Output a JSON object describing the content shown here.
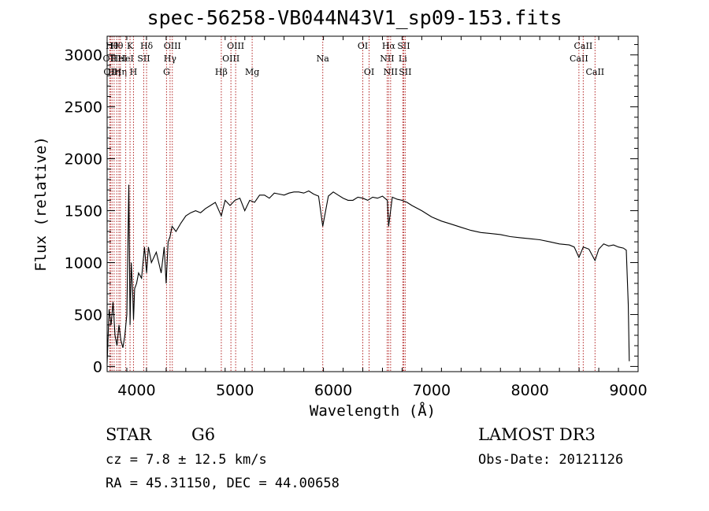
{
  "chart_data": {
    "type": "line",
    "title": "spec-56258-VB044N43V1_sp09-153.fits",
    "xlabel": "Wavelength (Å)",
    "ylabel": "Flux (relative)",
    "xlim": [
      3700,
      9100
    ],
    "ylim": [
      -50,
      3180
    ],
    "xticks": [
      4000,
      5000,
      6000,
      7000,
      8000,
      9000
    ],
    "yticks": [
      0,
      500,
      1000,
      1500,
      2000,
      2500,
      3000
    ],
    "series": [
      {
        "name": "spectrum",
        "color": "#000000",
        "x": [
          3700,
          3720,
          3740,
          3760,
          3780,
          3800,
          3820,
          3840,
          3860,
          3880,
          3900,
          3920,
          3933,
          3945,
          3960,
          3968,
          3980,
          4000,
          4020,
          4050,
          4080,
          4101,
          4120,
          4150,
          4200,
          4250,
          4280,
          4300,
          4320,
          4340,
          4360,
          4400,
          4450,
          4500,
          4550,
          4600,
          4650,
          4700,
          4750,
          4800,
          4861,
          4900,
          4950,
          5000,
          5050,
          5100,
          5150,
          5200,
          5250,
          5300,
          5350,
          5400,
          5450,
          5500,
          5550,
          5600,
          5650,
          5700,
          5750,
          5800,
          5850,
          5893,
          5950,
          6000,
          6050,
          6100,
          6150,
          6200,
          6250,
          6300,
          6350,
          6400,
          6450,
          6500,
          6550,
          6563,
          6600,
          6650,
          6700,
          6750,
          6800,
          6900,
          7000,
          7100,
          7200,
          7300,
          7400,
          7500,
          7600,
          7700,
          7800,
          7900,
          8000,
          8100,
          8200,
          8300,
          8400,
          8450,
          8498,
          8542,
          8600,
          8662,
          8700,
          8750,
          8800,
          8850,
          8900,
          8950,
          8980,
          9000,
          9010
        ],
        "y": [
          30,
          550,
          400,
          620,
          300,
          200,
          400,
          250,
          180,
          300,
          500,
          1750,
          400,
          1000,
          700,
          450,
          750,
          800,
          900,
          850,
          1150,
          900,
          1150,
          1000,
          1100,
          900,
          1150,
          800,
          1200,
          1250,
          1350,
          1300,
          1380,
          1450,
          1480,
          1500,
          1480,
          1520,
          1550,
          1580,
          1450,
          1600,
          1550,
          1600,
          1620,
          1500,
          1600,
          1580,
          1650,
          1650,
          1620,
          1670,
          1660,
          1650,
          1670,
          1680,
          1680,
          1670,
          1690,
          1660,
          1640,
          1350,
          1640,
          1680,
          1650,
          1620,
          1600,
          1600,
          1630,
          1620,
          1600,
          1630,
          1620,
          1640,
          1600,
          1350,
          1630,
          1610,
          1600,
          1580,
          1550,
          1500,
          1440,
          1400,
          1370,
          1340,
          1310,
          1290,
          1280,
          1270,
          1250,
          1240,
          1230,
          1220,
          1200,
          1180,
          1170,
          1150,
          1050,
          1150,
          1130,
          1020,
          1130,
          1180,
          1160,
          1170,
          1150,
          1140,
          1120,
          600,
          50
        ]
      }
    ],
    "lines": [
      {
        "x": 3727,
        "row": 1,
        "label": "OII"
      },
      {
        "x": 3734,
        "row": 2,
        "label": "OII"
      },
      {
        "x": 3750,
        "row": 0,
        "label": "Hθ"
      },
      {
        "x": 3771,
        "row": 2,
        "label": "Hη"
      },
      {
        "x": 3798,
        "row": 0,
        "label": "Hθ"
      },
      {
        "x": 3820,
        "row": 1,
        "label": "HeI"
      },
      {
        "x": 3835,
        "row": 2,
        "label": "Hη"
      },
      {
        "x": 3889,
        "row": 1,
        "label": "HeI"
      },
      {
        "x": 3933,
        "row": 0,
        "label": "K"
      },
      {
        "x": 3968,
        "row": 2,
        "label": "H"
      },
      {
        "x": 4072,
        "row": 1,
        "label": "SII"
      },
      {
        "x": 4101,
        "row": 0,
        "label": "Hδ"
      },
      {
        "x": 4304,
        "row": 2,
        "label": "G"
      },
      {
        "x": 4340,
        "row": 1,
        "label": "Hγ"
      },
      {
        "x": 4363,
        "row": 0,
        "label": "OIII"
      },
      {
        "x": 4861,
        "row": 2,
        "label": "Hβ"
      },
      {
        "x": 4959,
        "row": 1,
        "label": "OIII"
      },
      {
        "x": 5007,
        "row": 0,
        "label": "OIII"
      },
      {
        "x": 5175,
        "row": 2,
        "label": "Mg"
      },
      {
        "x": 5893,
        "row": 1,
        "label": "Na"
      },
      {
        "x": 6300,
        "row": 0,
        "label": "OI"
      },
      {
        "x": 6364,
        "row": 2,
        "label": "OI"
      },
      {
        "x": 6548,
        "row": 1,
        "label": "NII"
      },
      {
        "x": 6563,
        "row": 0,
        "label": "Hα"
      },
      {
        "x": 6583,
        "row": 2,
        "label": "NII"
      },
      {
        "x": 6707,
        "row": 1,
        "label": "Li"
      },
      {
        "x": 6716,
        "row": 0,
        "label": "SII"
      },
      {
        "x": 6731,
        "row": 2,
        "label": "SII"
      },
      {
        "x": 8498,
        "row": 1,
        "label": "CaII"
      },
      {
        "x": 8542,
        "row": 0,
        "label": "CaII"
      },
      {
        "x": 8662,
        "row": 2,
        "label": "CaII"
      }
    ]
  },
  "info": {
    "object_class": "STAR",
    "subclass": "G6",
    "survey": "LAMOST DR3",
    "redshift": "cz = 7.8 ± 12.5 km/s",
    "obs_date": "Obs-Date: 20121126",
    "coords": "RA =  45.31150, DEC =  44.00658"
  },
  "colors": {
    "axis": "#000000",
    "line_marker": "#b22222",
    "spectrum": "#000000"
  }
}
